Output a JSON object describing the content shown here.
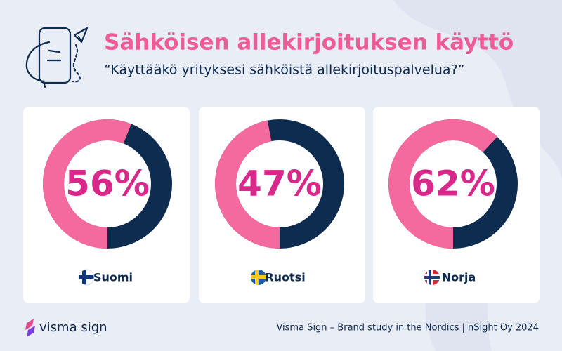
{
  "title": "Sähköisen allekirjoituksen käyttö",
  "subtitle": "“Käyttääkö yrityksesi sähköistä allekirjoituspalvelua?”",
  "brand": "visma sign",
  "source": "Visma Sign – Brand study in the Nordics | nSight Oy 2024",
  "chart_data": [
    {
      "type": "donut",
      "categories": [
        "Suomi"
      ],
      "values": [
        56
      ],
      "value_labels": [
        "56%"
      ],
      "range": [
        0,
        100
      ],
      "color": "#f46a9e",
      "track_color": "#0e2b50"
    },
    {
      "type": "donut",
      "categories": [
        "Ruotsi"
      ],
      "values": [
        47
      ],
      "value_labels": [
        "47%"
      ],
      "range": [
        0,
        100
      ],
      "color": "#f46a9e",
      "track_color": "#0e2b50"
    },
    {
      "type": "donut",
      "categories": [
        "Norja"
      ],
      "values": [
        62
      ],
      "value_labels": [
        "62%"
      ],
      "range": [
        0,
        100
      ],
      "color": "#f46a9e",
      "track_color": "#0e2b50"
    }
  ]
}
